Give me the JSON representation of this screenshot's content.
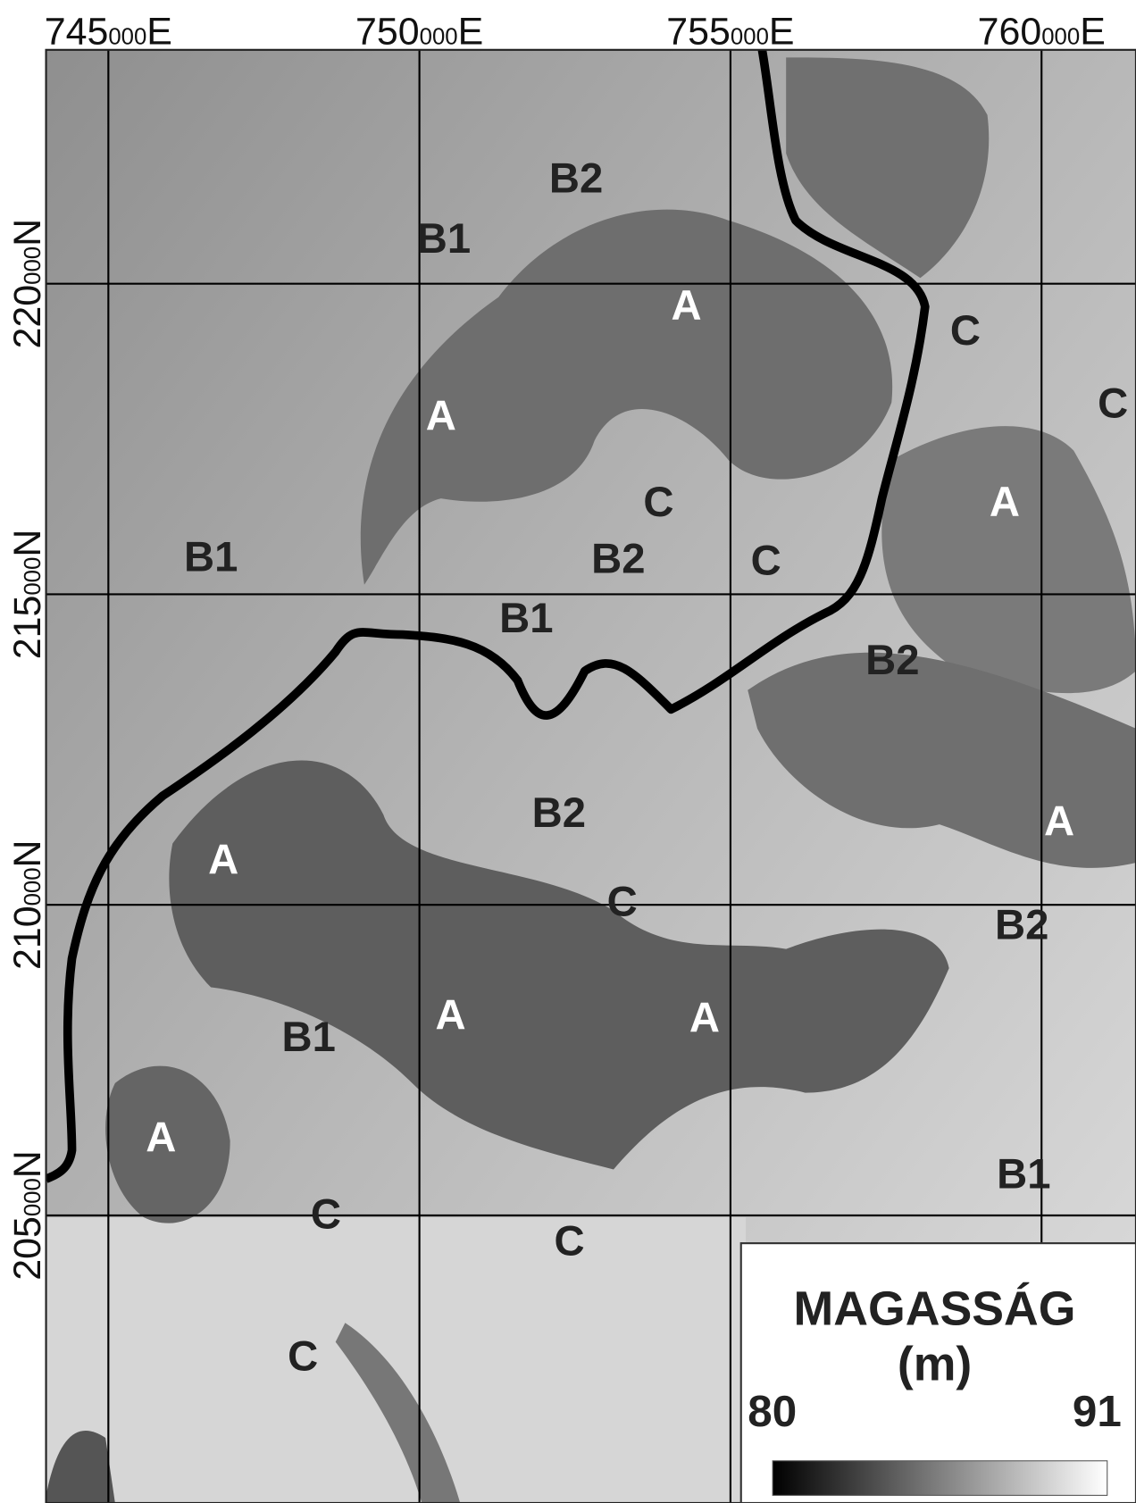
{
  "map": {
    "x_ticks": [
      {
        "value": 745000,
        "major": "745",
        "minor": "000",
        "suffix": "E"
      },
      {
        "value": 750000,
        "major": "750",
        "minor": "000",
        "suffix": "E"
      },
      {
        "value": 755000,
        "major": "755",
        "minor": "000",
        "suffix": "E"
      },
      {
        "value": 760000,
        "major": "760",
        "minor": "000",
        "suffix": "E"
      }
    ],
    "y_ticks": [
      {
        "value": 220000,
        "major": "220",
        "minor": "000",
        "suffix": "N"
      },
      {
        "value": 215000,
        "major": "215",
        "minor": "000",
        "suffix": "N"
      },
      {
        "value": 210000,
        "major": "210",
        "minor": "000",
        "suffix": "N"
      },
      {
        "value": 205000,
        "major": "205",
        "minor": "000",
        "suffix": "N"
      }
    ],
    "zone_labels": [
      "A",
      "A",
      "A",
      "A",
      "A",
      "A",
      "A",
      "A",
      "B1",
      "B1",
      "B1",
      "B1",
      "B1",
      "B2",
      "B2",
      "B2",
      "B2",
      "B2",
      "C",
      "C",
      "C",
      "C",
      "C",
      "C",
      "C",
      "C"
    ]
  },
  "legend": {
    "title": "MAGASSÁG",
    "unit": "(m)",
    "min": 80,
    "max": 91
  }
}
